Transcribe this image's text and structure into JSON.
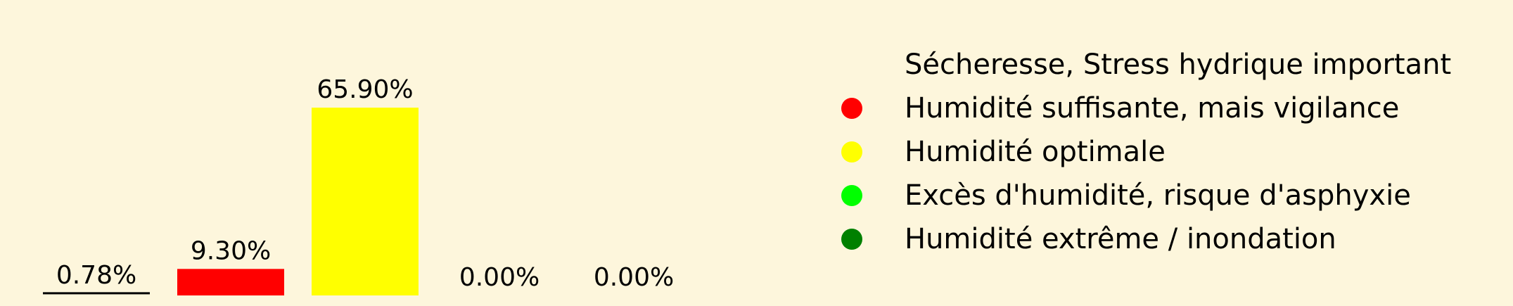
{
  "chart_data": {
    "type": "bar",
    "categories": [
      "Sécheresse, Stress hydrique important",
      "Humidité suffisante, mais vigilance",
      "Humidité optimale",
      "Excès d'humidité, risque d'asphyxie",
      "Humidité extrême / inondation"
    ],
    "values": [
      0.78,
      9.3,
      65.9,
      0.0,
      0.0
    ],
    "value_labels": [
      "0.78%",
      "9.30%",
      "65.90%",
      "0.00%",
      "0.00%"
    ],
    "colors": [
      "#fdf6dc",
      "#ff0000",
      "#ffff00",
      "#00ff00",
      "#008000"
    ],
    "ylim": [
      0,
      70
    ],
    "grid": false,
    "legend": {
      "placement": "right",
      "entries": [
        {
          "label": "Sécheresse, Stress hydrique important",
          "color": "#fdf6dc"
        },
        {
          "label": "Humidité suffisante, mais vigilance",
          "color": "#ff0000"
        },
        {
          "label": "Humidité optimale",
          "color": "#ffff00"
        },
        {
          "label": "Excès d'humidité, risque d'asphyxie",
          "color": "#00ff00"
        },
        {
          "label": "Humidité extrême / inondation",
          "color": "#008000"
        }
      ]
    },
    "background_color": "#fdf6dc"
  }
}
